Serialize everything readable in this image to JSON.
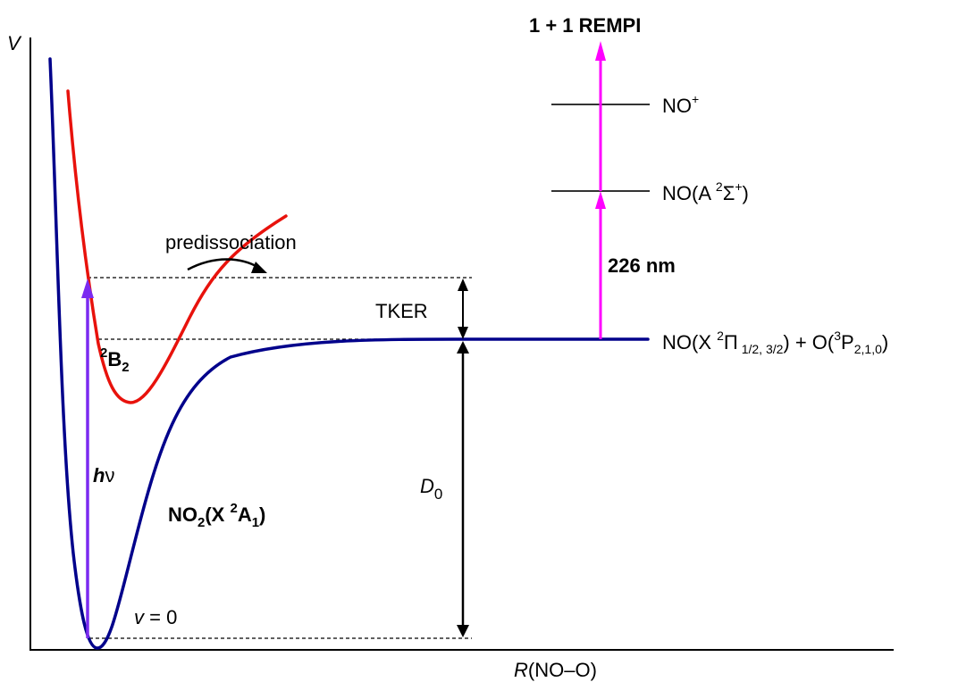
{
  "axes": {
    "y_label": "V",
    "x_label_italic": "R",
    "x_label_rest": "(NO–O)"
  },
  "title": "1 + 1 REMPI",
  "curves": {
    "ground": {
      "prefix": "NO",
      "sub1": "2",
      "mid": "(X ",
      "sup": "2",
      "state": "A",
      "sub2": "1",
      "suffix": ")",
      "color": "#00008B"
    },
    "excited": {
      "sup": "2",
      "state": "B",
      "sub": "2",
      "color": "#E8120C"
    }
  },
  "labels": {
    "predissociation": "predissociation",
    "tker": "TKER",
    "d0_main": "D",
    "d0_sub": "0",
    "hv_h": "h",
    "hv_nu": "ν",
    "hv_color": "#7B2BF0",
    "v0": "v",
    "v0_rest": " = 0",
    "wavelength": "226 nm",
    "wavelength_color": "#FF00FF"
  },
  "levels": {
    "no_ion": {
      "main": "NO",
      "sup": "+"
    },
    "no_a": {
      "main": "NO(A ",
      "sup1": "2",
      "sigma": "Σ",
      "sup2": "+",
      "end": ")"
    },
    "asymptote": {
      "a": "NO(X ",
      "sup1": "2",
      "pi": "Π",
      "sub1": " 1/2, 3/2",
      "b": ") + O(",
      "sup2": "3",
      "p": "P",
      "sub2": "2,1,0",
      "c": ")"
    }
  }
}
